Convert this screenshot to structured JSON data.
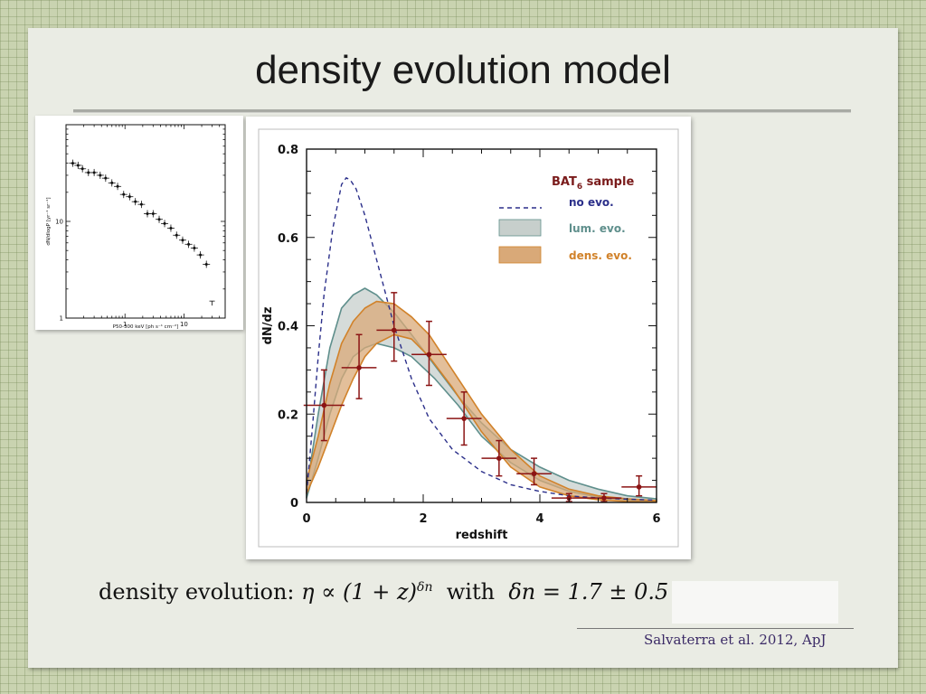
{
  "slide": {
    "title": "density evolution model",
    "formula": {
      "prefix": "density evolution: ",
      "math1": "η ∝ (1 + z)",
      "exponent": "δn",
      "middle": "  with  ",
      "math2": "δn = 1.7 ± 0.5"
    },
    "citation": "Salvaterra et al. 2012, ApJ"
  },
  "chart_data": [
    {
      "type": "scatter",
      "title": "",
      "xlabel": "P50-300 keV [ph s⁻¹ cm⁻²]",
      "ylabel": "dN/dlogP [yr⁻¹ sr⁻¹]",
      "xscale": "log",
      "yscale": "log",
      "xlim": [
        0.1,
        50
      ],
      "ylim": [
        1,
        100
      ],
      "x_ticks": [
        "1",
        "10"
      ],
      "y_ticks": [
        "1",
        "10"
      ],
      "points": [
        {
          "x": 0.13,
          "y": 40
        },
        {
          "x": 0.16,
          "y": 38
        },
        {
          "x": 0.19,
          "y": 35
        },
        {
          "x": 0.24,
          "y": 32
        },
        {
          "x": 0.3,
          "y": 32
        },
        {
          "x": 0.38,
          "y": 30
        },
        {
          "x": 0.47,
          "y": 28
        },
        {
          "x": 0.6,
          "y": 25
        },
        {
          "x": 0.75,
          "y": 23
        },
        {
          "x": 0.95,
          "y": 19
        },
        {
          "x": 1.2,
          "y": 18
        },
        {
          "x": 1.5,
          "y": 16
        },
        {
          "x": 1.9,
          "y": 15
        },
        {
          "x": 2.4,
          "y": 12
        },
        {
          "x": 3.0,
          "y": 12
        },
        {
          "x": 3.8,
          "y": 10.5
        },
        {
          "x": 4.7,
          "y": 9.5
        },
        {
          "x": 6.0,
          "y": 8.5
        },
        {
          "x": 7.5,
          "y": 7.2
        },
        {
          "x": 9.5,
          "y": 6.4
        },
        {
          "x": 12,
          "y": 5.8
        },
        {
          "x": 15,
          "y": 5.3
        },
        {
          "x": 19,
          "y": 4.5
        },
        {
          "x": 24,
          "y": 3.6
        }
      ],
      "upper_limits": [
        {
          "x": 30,
          "y": 1.5
        }
      ]
    },
    {
      "type": "line",
      "title": "",
      "xlabel": "redshift",
      "ylabel": "dN/dz",
      "xlim": [
        0,
        6
      ],
      "ylim": [
        0,
        0.8
      ],
      "x_ticks": [
        "0",
        "2",
        "4",
        "6"
      ],
      "y_ticks": [
        "0",
        "0.2",
        "0.4",
        "0.6",
        "0.8"
      ],
      "legend": {
        "position": "top-right",
        "title": "BAT",
        "title_sub": "6",
        "title_suffix": " sample",
        "entries": [
          {
            "label": "no evo.",
            "color": "#2b2f8a",
            "style": "dashed"
          },
          {
            "label": "lum. evo.",
            "color": "#5f8f8c",
            "style": "band"
          },
          {
            "label": "dens. evo.",
            "color": "#d1822a",
            "style": "band"
          }
        ]
      },
      "colors": {
        "title": "#7a1b1b",
        "no_evo": "#2b2f8a",
        "lum_band_fill": "#c7cfcc",
        "lum_band_line": "#5f8f8c",
        "dens_band_fill": "#d9a978",
        "dens_band_line": "#d1822a",
        "data": "#8b1414"
      },
      "series": [
        {
          "name": "no evo.",
          "x": [
            0,
            0.1,
            0.2,
            0.3,
            0.45,
            0.6,
            0.68,
            0.75,
            0.85,
            1.0,
            1.2,
            1.5,
            1.8,
            2.1,
            2.5,
            3.0,
            3.5,
            4.0,
            4.5,
            5.0,
            6.0
          ],
          "y": [
            0.02,
            0.17,
            0.33,
            0.47,
            0.62,
            0.72,
            0.735,
            0.73,
            0.71,
            0.65,
            0.55,
            0.4,
            0.28,
            0.19,
            0.12,
            0.07,
            0.04,
            0.025,
            0.015,
            0.01,
            0.005
          ]
        },
        {
          "name": "lum. evo.",
          "x": [
            0,
            0.2,
            0.4,
            0.6,
            0.8,
            1.0,
            1.2,
            1.5,
            1.8,
            2.2,
            2.6,
            3.0,
            3.5,
            4.0,
            4.5,
            5.0,
            5.5,
            6.0
          ],
          "upper": [
            0.03,
            0.2,
            0.35,
            0.44,
            0.47,
            0.485,
            0.47,
            0.43,
            0.38,
            0.31,
            0.24,
            0.18,
            0.12,
            0.08,
            0.05,
            0.03,
            0.015,
            0.008
          ],
          "lower": [
            0.01,
            0.1,
            0.2,
            0.28,
            0.33,
            0.35,
            0.36,
            0.35,
            0.33,
            0.28,
            0.22,
            0.15,
            0.09,
            0.05,
            0.025,
            0.012,
            0.005,
            0.002
          ]
        },
        {
          "name": "dens. evo.",
          "x": [
            0,
            0.2,
            0.4,
            0.6,
            0.8,
            1.0,
            1.2,
            1.5,
            1.8,
            2.1,
            2.5,
            3.0,
            3.5,
            4.0,
            4.5,
            5.0,
            5.5,
            6.0
          ],
          "upper": [
            0.05,
            0.15,
            0.27,
            0.36,
            0.41,
            0.44,
            0.455,
            0.45,
            0.42,
            0.38,
            0.3,
            0.2,
            0.12,
            0.06,
            0.03,
            0.015,
            0.008,
            0.004
          ],
          "lower": [
            0.02,
            0.08,
            0.15,
            0.22,
            0.28,
            0.33,
            0.36,
            0.38,
            0.37,
            0.33,
            0.26,
            0.16,
            0.08,
            0.035,
            0.015,
            0.006,
            0.002,
            0.001
          ]
        },
        {
          "name": "data",
          "points": [
            {
              "x": 0.3,
              "y": 0.22,
              "xerr": 0.35,
              "yerr_lo": 0.08,
              "yerr_hi": 0.08
            },
            {
              "x": 0.9,
              "y": 0.305,
              "xerr": 0.3,
              "yerr_lo": 0.07,
              "yerr_hi": 0.075
            },
            {
              "x": 1.5,
              "y": 0.39,
              "xerr": 0.3,
              "yerr_lo": 0.07,
              "yerr_hi": 0.085
            },
            {
              "x": 2.1,
              "y": 0.335,
              "xerr": 0.3,
              "yerr_lo": 0.07,
              "yerr_hi": 0.075
            },
            {
              "x": 2.7,
              "y": 0.19,
              "xerr": 0.3,
              "yerr_lo": 0.06,
              "yerr_hi": 0.06
            },
            {
              "x": 3.3,
              "y": 0.1,
              "xerr": 0.3,
              "yerr_lo": 0.04,
              "yerr_hi": 0.04
            },
            {
              "x": 3.9,
              "y": 0.065,
              "xerr": 0.3,
              "yerr_lo": 0.025,
              "yerr_hi": 0.035
            },
            {
              "x": 4.5,
              "y": 0.01,
              "xerr": 0.3,
              "yerr_lo": 0.008,
              "yerr_hi": 0.01
            },
            {
              "x": 5.1,
              "y": 0.01,
              "xerr": 0.3,
              "yerr_lo": 0.008,
              "yerr_hi": 0.01
            },
            {
              "x": 5.7,
              "y": 0.035,
              "xerr": 0.3,
              "yerr_lo": 0.02,
              "yerr_hi": 0.025
            }
          ]
        }
      ]
    }
  ]
}
